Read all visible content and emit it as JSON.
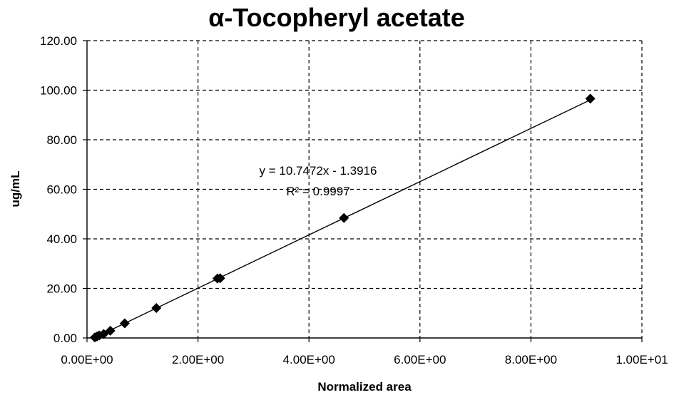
{
  "chart_data": {
    "type": "scatter",
    "title": "α-Tocopheryl acetate",
    "xlabel": "Normalized area",
    "ylabel": "ug/mL",
    "xlim": [
      0,
      10
    ],
    "ylim": [
      0,
      120
    ],
    "x_ticks": [
      0,
      2,
      4,
      6,
      8,
      10
    ],
    "x_tick_labels": [
      "0.00E+00",
      "2.00E+00",
      "4.00E+00",
      "6.00E+00",
      "8.00E+00",
      "1.00E+01"
    ],
    "y_ticks": [
      0,
      20,
      40,
      60,
      80,
      100,
      120
    ],
    "y_tick_labels": [
      "0.00",
      "20.00",
      "40.00",
      "60.00",
      "80.00",
      "100.00",
      "120.00"
    ],
    "grid": true,
    "grid_style": "dashed",
    "marker": "diamond",
    "marker_color": "#000000",
    "series": [
      {
        "points": [
          {
            "x": 0.14,
            "y": 0.2
          },
          {
            "x": 0.18,
            "y": 0.6
          },
          {
            "x": 0.22,
            "y": 1.0
          },
          {
            "x": 0.3,
            "y": 1.6
          },
          {
            "x": 0.42,
            "y": 2.9
          },
          {
            "x": 0.68,
            "y": 5.9
          },
          {
            "x": 1.25,
            "y": 12.1
          },
          {
            "x": 2.35,
            "y": 24.0
          },
          {
            "x": 2.4,
            "y": 24.1
          },
          {
            "x": 4.63,
            "y": 48.4
          },
          {
            "x": 9.07,
            "y": 96.6
          }
        ]
      }
    ],
    "trendline": {
      "slope": 10.7472,
      "intercept": -1.3916,
      "x_range": [
        0.13,
        9.1
      ]
    },
    "annotations": {
      "equation": "y = 10.7472x - 1.3916",
      "r_squared": "R² = 0.9997"
    }
  }
}
